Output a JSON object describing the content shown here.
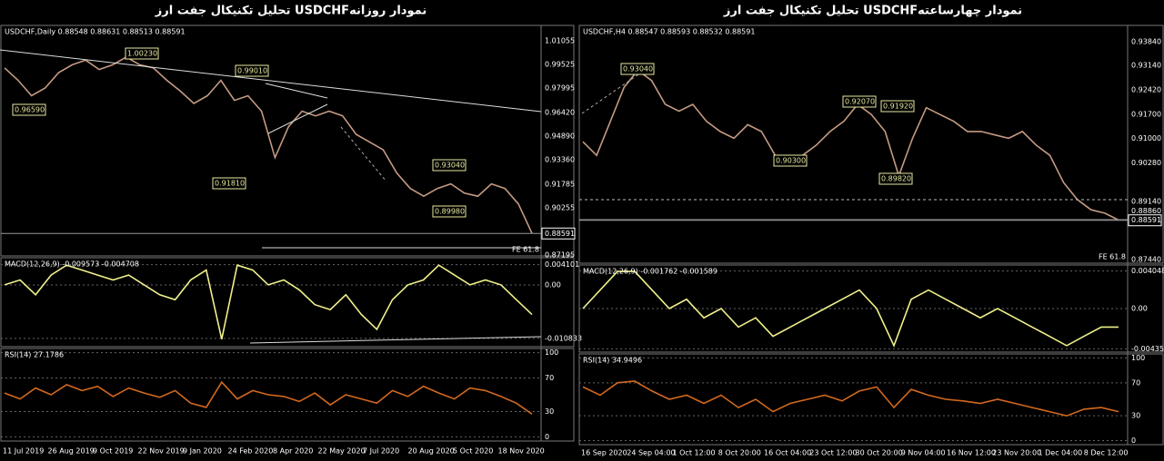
{
  "left": {
    "title": "تحلیل تکنیکال جفت ارز USDCHFنمودار روزانه",
    "price": {
      "header": "USDCHF,Daily  0.88548 0.88631 0.88513 0.88591",
      "ticks": [
        "1.01055",
        "0.99525",
        "0.97995",
        "0.96420",
        "0.94890",
        "0.93360",
        "0.91785",
        "0.90255",
        "0.87195"
      ],
      "ylim": [
        0.8714,
        1.0205
      ],
      "close": [
        0.993,
        0.985,
        0.975,
        0.98,
        0.99,
        0.995,
        0.998,
        0.992,
        0.995,
        1.0,
        0.995,
        0.993,
        0.985,
        0.978,
        0.97,
        0.975,
        0.985,
        0.972,
        0.975,
        0.965,
        0.935,
        0.955,
        0.965,
        0.962,
        0.965,
        0.962,
        0.95,
        0.945,
        0.94,
        0.925,
        0.915,
        0.91,
        0.915,
        0.918,
        0.912,
        0.91,
        0.918,
        0.915,
        0.905,
        0.886
      ],
      "labels": [
        "1.00230",
        "0.99010",
        "0.96590",
        "0.91810",
        "0.93040",
        "0.89980"
      ],
      "current": "0.88591",
      "fe": "FE 61.8"
    },
    "macd": {
      "header": "MACD(12,26,9) -0.009573 -0.004708",
      "ticks": [
        "0.004101",
        "0.00",
        "-0.010833"
      ],
      "ylim": [
        -0.0125,
        0.0055
      ],
      "values": [
        0.0,
        0.001,
        -0.002,
        0.002,
        0.004,
        0.003,
        0.002,
        0.001,
        0.002,
        0.0,
        -0.002,
        -0.003,
        0.001,
        0.003,
        -0.011,
        0.004,
        0.003,
        0.0,
        0.001,
        -0.001,
        -0.004,
        -0.005,
        -0.002,
        -0.006,
        -0.009,
        -0.003,
        0.0,
        0.001,
        0.004,
        0.002,
        0.0,
        0.001,
        0.0,
        -0.003,
        -0.006
      ]
    },
    "rsi": {
      "header": "RSI(14) 27.1786",
      "ticks": [
        "100",
        "70",
        "30",
        "0"
      ],
      "ylim": [
        -5,
        105
      ],
      "values": [
        52,
        45,
        58,
        50,
        62,
        55,
        60,
        48,
        58,
        52,
        47,
        55,
        40,
        35,
        65,
        45,
        55,
        50,
        48,
        42,
        52,
        38,
        50,
        45,
        40,
        55,
        48,
        60,
        52,
        45,
        58,
        55,
        48,
        40,
        27
      ]
    },
    "dates": [
      "11 Jul 2019",
      "26 Aug 2019",
      "9 Oct 2019",
      "22 Nov 2019",
      "9 Jan 2020",
      "24 Feb 2020",
      "8 Apr 2020",
      "22 May 2020",
      "7 Jul 2020",
      "20 Aug 2020",
      "5 Oct 2020",
      "18 Nov 2020"
    ]
  },
  "right": {
    "title": "تحلیل تکنیکال جفت ارز USDCHFنمودار چهارساعته",
    "price": {
      "header": "USDCHF,H4  0.88547 0.88593 0.88532 0.88591",
      "ticks": [
        "0.93840",
        "0.93140",
        "0.92420",
        "0.91700",
        "0.91000",
        "0.90280",
        "0.89140",
        "0.88860",
        "0.87440"
      ],
      "ylim": [
        0.8733,
        0.9432
      ],
      "close": [
        0.909,
        0.905,
        0.915,
        0.925,
        0.93,
        0.927,
        0.92,
        0.918,
        0.92,
        0.915,
        0.912,
        0.91,
        0.914,
        0.912,
        0.905,
        0.903,
        0.905,
        0.908,
        0.912,
        0.915,
        0.92,
        0.917,
        0.912,
        0.899,
        0.91,
        0.919,
        0.917,
        0.915,
        0.912,
        0.912,
        0.911,
        0.91,
        0.912,
        0.908,
        0.905,
        0.897,
        0.892,
        0.889,
        0.888,
        0.886
      ],
      "labels": [
        "0.93040",
        "0.92070",
        "0.91920",
        "0.90300",
        "0.89820"
      ],
      "current": "0.88591",
      "fe": "FE 61.8"
    },
    "macd": {
      "header": "MACD(12,26,9) -0.001762 -0.001589",
      "ticks": [
        "0.004048",
        "0.00",
        "-0.004351"
      ],
      "ylim": [
        -0.0047,
        0.0047
      ],
      "values": [
        0.0,
        0.002,
        0.004,
        0.004,
        0.002,
        0.0,
        0.001,
        -0.001,
        0.0,
        -0.002,
        -0.001,
        -0.003,
        -0.002,
        -0.001,
        0.0,
        0.001,
        0.002,
        0.0,
        -0.004,
        0.001,
        0.002,
        0.001,
        0.0,
        -0.001,
        0.0,
        -0.001,
        -0.002,
        -0.003,
        -0.004,
        -0.003,
        -0.002,
        -0.002
      ]
    },
    "rsi": {
      "header": "RSI(14) 34.9496",
      "ticks": [
        "100",
        "70",
        "30",
        "0"
      ],
      "ylim": [
        -5,
        105
      ],
      "values": [
        65,
        55,
        70,
        72,
        60,
        50,
        55,
        45,
        55,
        40,
        50,
        35,
        45,
        50,
        55,
        48,
        60,
        65,
        40,
        62,
        55,
        50,
        48,
        45,
        50,
        45,
        40,
        35,
        30,
        38,
        40,
        35
      ]
    },
    "dates": [
      "16 Sep 2020",
      "24 Sep 04:00",
      "1 Oct 12:00",
      "8 Oct 20:00",
      "16 Oct 04:00",
      "23 Oct 12:00",
      "30 Oct 20:00",
      "9 Nov 04:00",
      "16 Nov 12:00",
      "23 Nov 20:00",
      "1 Dec 04:00",
      "8 Dec 12:00"
    ]
  }
}
